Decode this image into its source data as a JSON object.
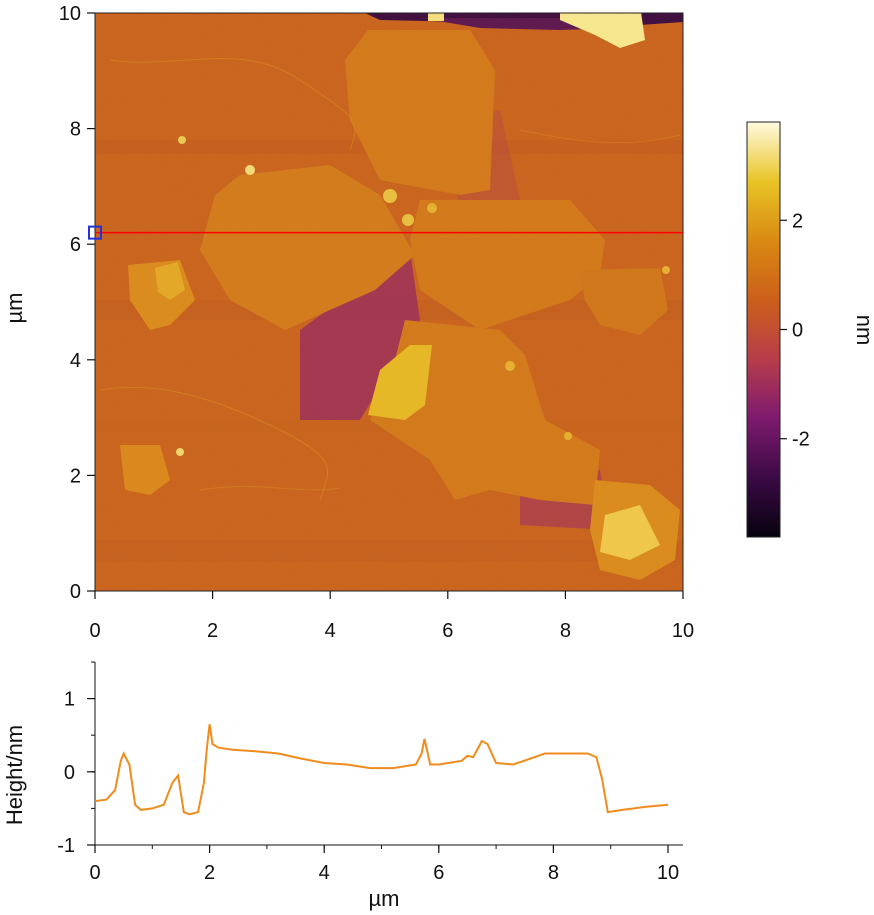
{
  "chart_data": [
    {
      "type": "heatmap",
      "title": "",
      "xlabel": "",
      "ylabel": "µm",
      "xlim": [
        0,
        10
      ],
      "ylim": [
        0,
        10
      ],
      "x_ticks": [
        "0",
        "2",
        "4",
        "6",
        "8",
        "10"
      ],
      "y_ticks": [
        "0",
        "2",
        "4",
        "6",
        "8",
        "10"
      ],
      "colorbar": {
        "label": "nm",
        "range": [
          -3.8,
          3.8
        ],
        "ticks": [
          "2",
          "0",
          "-2"
        ],
        "colors": [
          "#06020e",
          "#3b0a45",
          "#7e1a6e",
          "#b73d4a",
          "#cc5f1a",
          "#d98a12",
          "#e8c426",
          "#fffbe0"
        ]
      },
      "profile_line_y": 6.2,
      "profile_line_color": "#ff0000"
    },
    {
      "type": "line",
      "title": "",
      "xlabel": "µm",
      "ylabel": "Height/nm",
      "xlim": [
        0,
        10
      ],
      "ylim": [
        -1,
        1.5
      ],
      "x_ticks": [
        "0",
        "2",
        "4",
        "6",
        "8",
        "10"
      ],
      "y_ticks": [
        "-1",
        "0",
        "1"
      ],
      "color": "#f08c1e",
      "x": [
        0,
        0.2,
        0.35,
        0.45,
        0.5,
        0.6,
        0.7,
        0.8,
        1.0,
        1.2,
        1.35,
        1.45,
        1.55,
        1.65,
        1.8,
        1.9,
        1.95,
        2.0,
        2.05,
        2.15,
        2.4,
        2.8,
        3.2,
        3.6,
        4.0,
        4.4,
        4.8,
        5.2,
        5.6,
        5.7,
        5.75,
        5.85,
        6.0,
        6.4,
        6.5,
        6.6,
        6.75,
        6.85,
        7.0,
        7.3,
        7.6,
        7.85,
        8.2,
        8.6,
        8.75,
        8.85,
        8.95,
        9.2,
        9.6,
        10.0
      ],
      "y": [
        -0.4,
        -0.38,
        -0.25,
        0.15,
        0.25,
        0.1,
        -0.45,
        -0.52,
        -0.5,
        -0.45,
        -0.15,
        -0.05,
        -0.55,
        -0.58,
        -0.55,
        -0.15,
        0.3,
        0.65,
        0.38,
        0.33,
        0.3,
        0.28,
        0.25,
        0.18,
        0.12,
        0.1,
        0.05,
        0.05,
        0.1,
        0.25,
        0.45,
        0.1,
        0.1,
        0.15,
        0.22,
        0.2,
        0.42,
        0.38,
        0.12,
        0.1,
        0.18,
        0.25,
        0.25,
        0.25,
        0.2,
        -0.1,
        -0.55,
        -0.52,
        -0.48,
        -0.45
      ]
    }
  ]
}
